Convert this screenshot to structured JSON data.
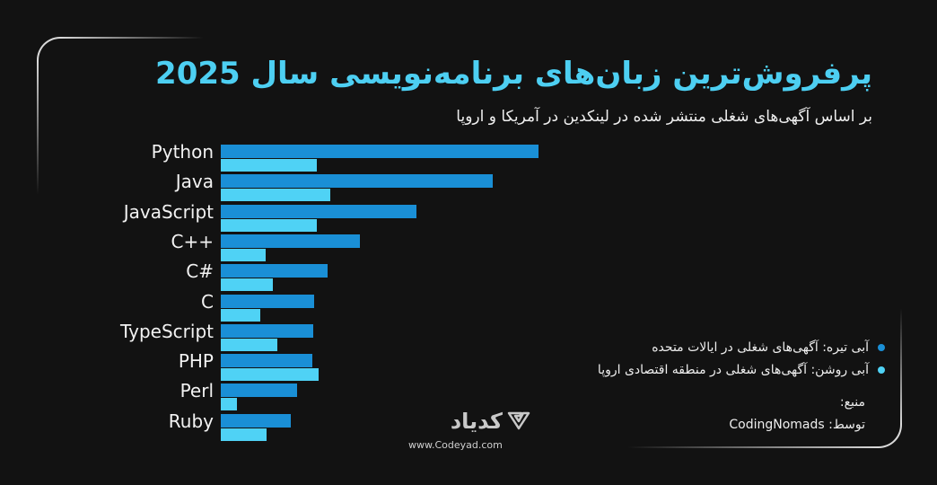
{
  "header": {
    "title": "پرفروش‌ترین زبان‌های برنامه‌نویسی سال 2025",
    "subtitle": "بر اساس آگهی‌های شغلی منتشر شده در لینکدین در آمریکا و اروپا"
  },
  "legend": {
    "items": [
      {
        "label": "آبی تیره: آگهی‌های شغلی در ایالات متحده",
        "color": "#1a8fd6"
      },
      {
        "label": "آبی روشن: آگهی‌های شغلی در منطقه اقتصادی اروپا",
        "color": "#4fd2f5"
      }
    ]
  },
  "source": {
    "label": "منبع:",
    "by": "توسط: CodingNomads"
  },
  "brand": {
    "name": "کدیاد",
    "url": "www.Codeyad.com",
    "icon": "codeyad-logo-icon"
  },
  "colors": {
    "background": "#121212",
    "title": "#4dcff2",
    "us_bar": "#1a8fd6",
    "eu_bar": "#4fd2f5"
  },
  "chart_data": {
    "type": "bar",
    "orientation": "horizontal",
    "title": "پرفروش‌ترین زبان‌های برنامه‌نویسی سال 2025",
    "subtitle": "بر اساس آگهی‌های شغلی منتشر شده در لینکدین در آمریکا و اروپا",
    "xlabel": "",
    "ylabel": "",
    "grid": false,
    "legend_position": "right",
    "categories": [
      "Python",
      "Java",
      "JavaScript",
      "C++",
      "C#",
      "C",
      "TypeScript",
      "PHP",
      "Perl",
      "Ruby"
    ],
    "units": "relative bar length (px, no axis shown)",
    "series": [
      {
        "name": "آبی تیره: آگهی‌های شغلی در ایالات متحده",
        "color": "#1a8fd6",
        "values": [
          354,
          303,
          218,
          155,
          119,
          104,
          103,
          102,
          85,
          78
        ]
      },
      {
        "name": "آبی روشن: آگهی‌های شغلی در منطقه اقتصادی اروپا",
        "color": "#4fd2f5",
        "values": [
          107,
          122,
          107,
          50,
          58,
          44,
          63,
          109,
          18,
          51
        ]
      }
    ]
  }
}
